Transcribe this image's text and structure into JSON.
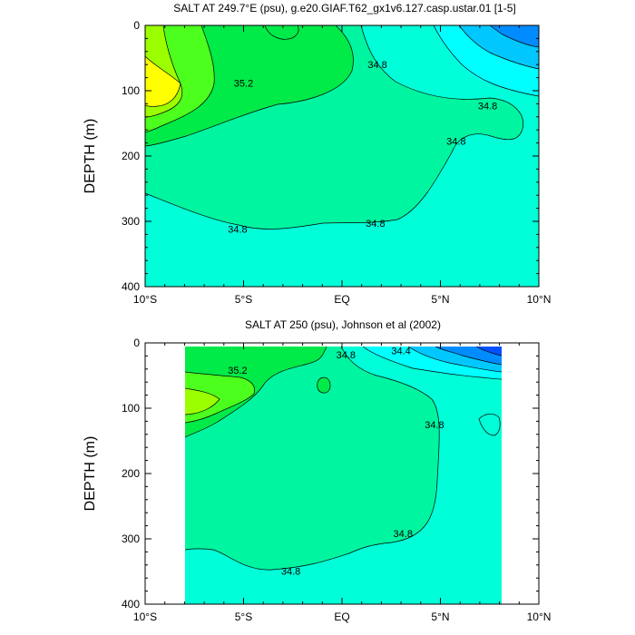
{
  "chart_data": [
    {
      "type": "heatmap",
      "title": "SALT AT 249.7°E (psu), g.e20.GIAF.T62_gx1v6.127.casp.ustar.01 [1-5]",
      "ylabel": "DEPTH (m)",
      "xlim": [
        -10,
        10
      ],
      "ylim": [
        400,
        0
      ],
      "x_ticks": [
        {
          "value": -10,
          "label": "10°S"
        },
        {
          "value": -5,
          "label": "5°S"
        },
        {
          "value": 0,
          "label": "EQ"
        },
        {
          "value": 5,
          "label": "5°N"
        },
        {
          "value": 10,
          "label": "10°N"
        }
      ],
      "y_ticks": [
        0,
        100,
        200,
        300,
        400
      ],
      "colors": {
        "yellow": "#ffff00",
        "yellowgreen": "#9cff00",
        "lightgreen": "#4cff1c",
        "green": "#00ea48",
        "aquagreen": "#00f5a0",
        "aqua": "#00ffd8",
        "cyan": "#00ffff",
        "skyblue": "#00c8ff",
        "blue": "#008cff"
      },
      "contour_labels": [
        {
          "text": "35.2",
          "x": -5,
          "y": 88
        },
        {
          "text": "34.8",
          "x": 1.8,
          "y": 60
        },
        {
          "text": "34.8",
          "x": 7.4,
          "y": 123
        },
        {
          "text": "34.8",
          "x": 5.8,
          "y": 177
        },
        {
          "text": "34.8",
          "x": 1.7,
          "y": 303
        },
        {
          "text": "34.8",
          "x": -5.3,
          "y": 312
        }
      ]
    },
    {
      "type": "heatmap",
      "title": "SALT AT 250 (psu), Johnson et al (2002)",
      "ylabel": "DEPTH (m)",
      "xlim": [
        -10,
        10
      ],
      "ylim": [
        400,
        0
      ],
      "data_x_extent": [
        -8,
        8
      ],
      "data_y_extent": [
        5,
        400
      ],
      "x_ticks": [
        {
          "value": -10,
          "label": "10°S"
        },
        {
          "value": -5,
          "label": "5°S"
        },
        {
          "value": 0,
          "label": "EQ"
        },
        {
          "value": 5,
          "label": "5°N"
        },
        {
          "value": 10,
          "label": "10°N"
        }
      ],
      "y_ticks": [
        0,
        100,
        200,
        300,
        400
      ],
      "colors": {
        "yellowgreen": "#9cff00",
        "lightgreen": "#4cff1c",
        "green": "#00ea48",
        "aquagreen": "#00f5a0",
        "aqua": "#00ffd8",
        "cyan": "#00ffff",
        "skyblue": "#00c8ff",
        "blue": "#008cff",
        "deepblue": "#0050ff"
      },
      "contour_labels": [
        {
          "text": "35.2",
          "x": -5.3,
          "y": 42
        },
        {
          "text": "34.8",
          "x": 0.2,
          "y": 18
        },
        {
          "text": "34.4",
          "x": 3.0,
          "y": 12
        },
        {
          "text": "34.8",
          "x": 4.7,
          "y": 125
        },
        {
          "text": "34.8",
          "x": 3.1,
          "y": 292
        },
        {
          "text": "34.8",
          "x": -2.6,
          "y": 349
        }
      ]
    }
  ]
}
